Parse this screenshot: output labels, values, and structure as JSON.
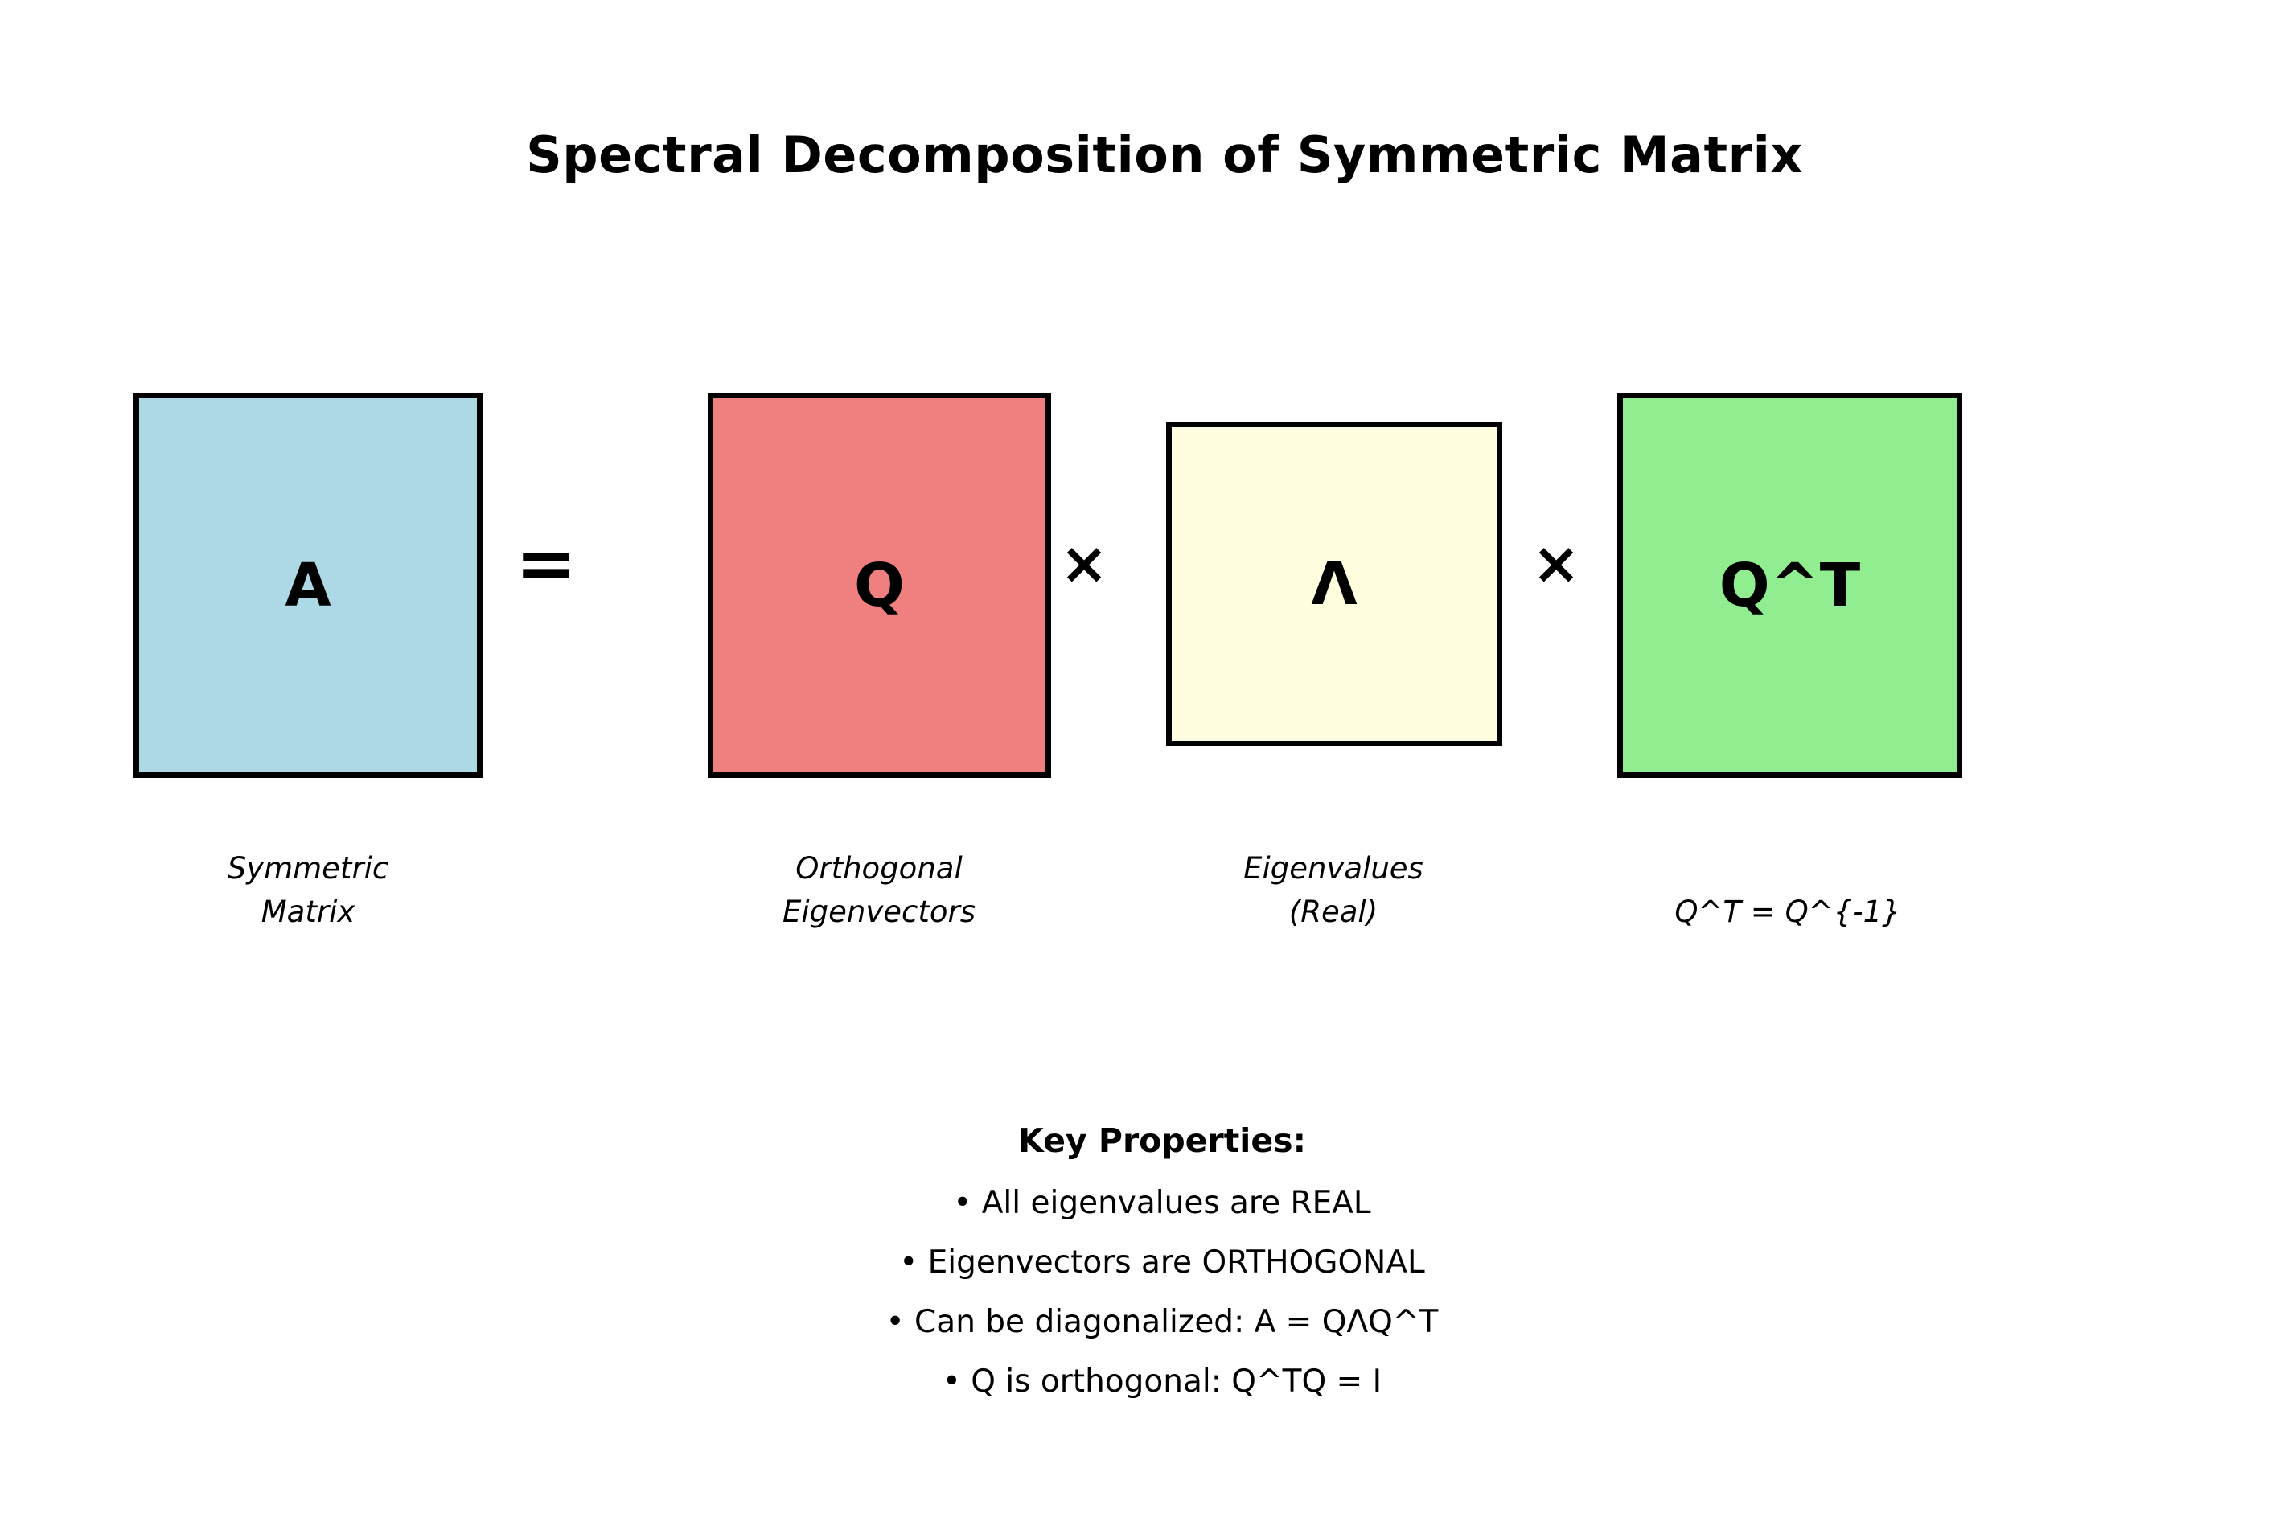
{
  "title": "Spectral Decomposition of Symmetric Matrix",
  "equation": {
    "border_color": "#000000",
    "boxes": [
      {
        "name": "symmetric-matrix",
        "label": "A",
        "fill": "#ADD8E6",
        "caption": "Symmetric\nMatrix"
      },
      {
        "name": "orthogonal-eigenvectors",
        "label": "Q",
        "fill": "#F08080",
        "caption": "Orthogonal\nEigenvectors"
      },
      {
        "name": "eigenvalues",
        "label": "Λ",
        "fill": "#FFFFE0",
        "caption": "Eigenvalues\n(Real)"
      },
      {
        "name": "transpose",
        "label": "Q^T",
        "fill": "#90EE90",
        "caption": "Q^T = Q^{-1}"
      }
    ],
    "operators": {
      "equals": "=",
      "times": "×"
    }
  },
  "key_properties": {
    "heading": "Key Properties:",
    "items": [
      "• All eigenvalues are REAL",
      "• Eigenvectors are ORTHOGONAL",
      "• Can be diagonalized: A = QΛQ^T",
      "• Q is orthogonal: Q^TQ = I"
    ]
  }
}
